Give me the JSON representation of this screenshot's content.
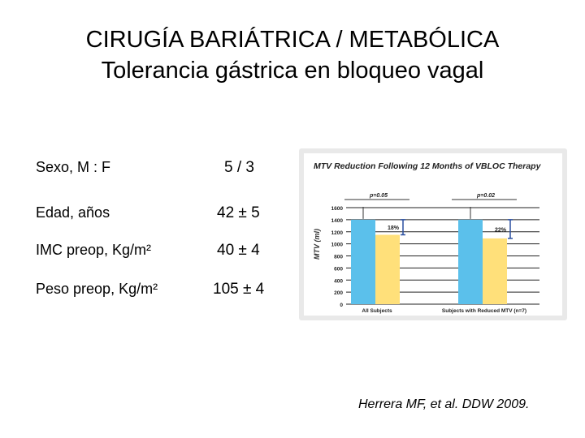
{
  "slide": {
    "title_line1": "CIRUGÍA BARIÁTRICA / METABÓLICA",
    "title_line2": "Tolerancia gástrica en bloqueo vagal",
    "citation": "Herrera MF, et al. DDW 2009."
  },
  "stats": [
    {
      "label": "Sexo, M : F",
      "value": "5 / 3"
    },
    {
      "label": "Edad, años",
      "value": "42 ± 5"
    },
    {
      "label": "IMC preop, Kg/m²",
      "value": "40 ± 4"
    },
    {
      "label": "Peso preop, Kg/m²",
      "value": "105 ± 4"
    }
  ],
  "chart_data": {
    "type": "bar",
    "title": "MTV Reduction Following 12 Months of VBLOC Therapy",
    "ylabel": "MTV (ml)",
    "ylim": [
      0,
      1600
    ],
    "yticks": [
      0,
      200,
      400,
      600,
      800,
      1000,
      1200,
      1400,
      1600
    ],
    "grid": true,
    "categories": [
      "All Subjects",
      "Subjects with Reduced MTV (n=7)"
    ],
    "series": [
      {
        "values": [
          1400,
          1400
        ],
        "color": "#5bc0eb"
      },
      {
        "values": [
          1150,
          1090
        ],
        "color": "#ffe07a"
      }
    ],
    "p_values": [
      "p=0.05",
      "p=0.02"
    ],
    "reductions": [
      "18%",
      "22%"
    ]
  }
}
